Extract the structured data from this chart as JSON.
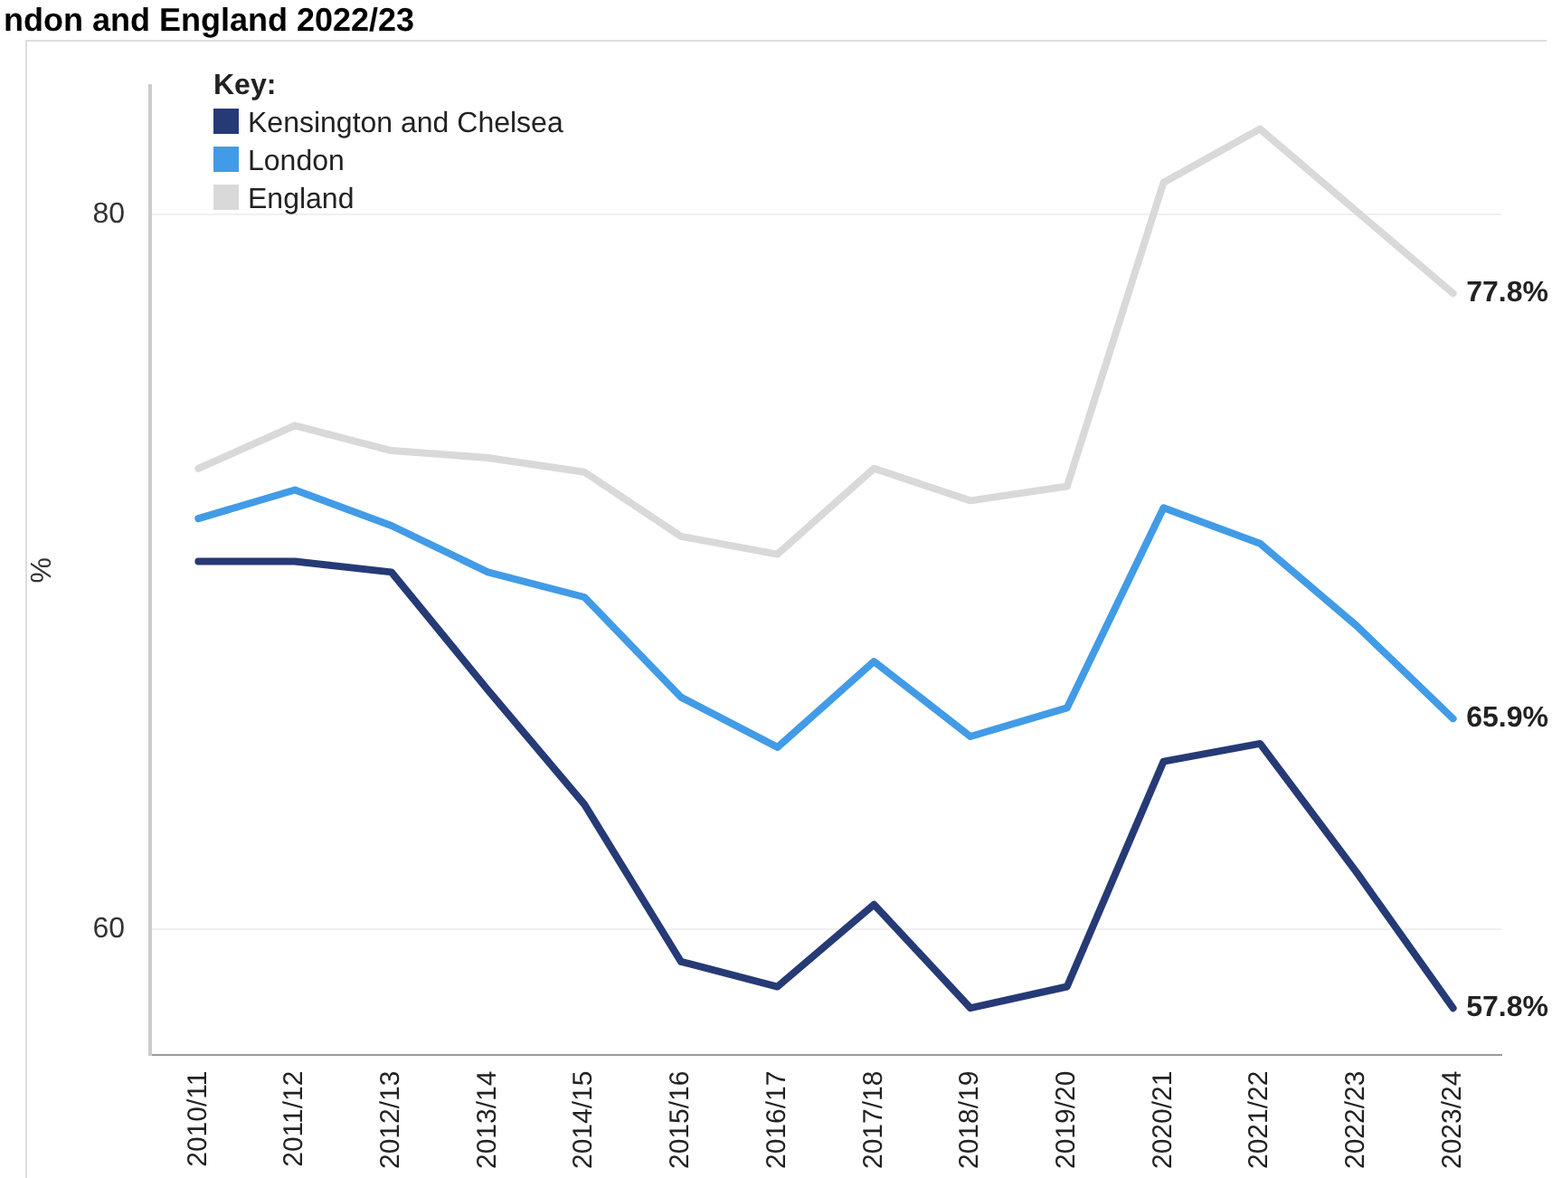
{
  "chart_data": {
    "type": "line",
    "title": "ndon and England 2022/23",
    "ylabel": "%",
    "legend_title": "Key:",
    "legend": "top left",
    "categories": [
      "2010/11",
      "2011/12",
      "2012/13",
      "2013/14",
      "2014/15",
      "2015/16",
      "2016/17",
      "2017/18",
      "2018/19",
      "2019/20",
      "2020/21",
      "2021/22",
      "2022/23",
      "2023/24"
    ],
    "series": [
      {
        "name": "Kensington and Chelsea",
        "color": "#263a76",
        "values": [
          70.3,
          70.3,
          70.0,
          66.7,
          63.5,
          59.1,
          58.4,
          60.7,
          57.8,
          58.4,
          64.7,
          65.2,
          61.6,
          57.8
        ],
        "value_labels": [
          null,
          null,
          null,
          null,
          null,
          null,
          null,
          null,
          null,
          null,
          null,
          null,
          null,
          "57.8%"
        ]
      },
      {
        "name": "London",
        "color": "#429be6",
        "values": [
          71.5,
          72.3,
          71.3,
          70.0,
          69.3,
          66.5,
          65.1,
          67.5,
          65.4,
          66.2,
          71.8,
          70.8,
          68.5,
          65.9
        ],
        "value_labels": [
          null,
          null,
          null,
          null,
          null,
          null,
          null,
          null,
          null,
          null,
          null,
          null,
          null,
          "65.9%"
        ]
      },
      {
        "name": "England",
        "color": "#d9d9d9",
        "values": [
          72.9,
          74.1,
          73.4,
          73.2,
          72.8,
          71.0,
          70.5,
          72.9,
          72.0,
          72.4,
          80.9,
          82.4,
          80.1,
          77.8
        ],
        "value_labels": [
          null,
          null,
          null,
          null,
          null,
          null,
          null,
          null,
          null,
          null,
          null,
          null,
          null,
          "77.8%"
        ]
      }
    ],
    "ylim": [
      56.5,
      83.6
    ],
    "yticks": [
      60,
      80
    ],
    "grid": "y",
    "marker": "none",
    "line_style": "solid"
  }
}
